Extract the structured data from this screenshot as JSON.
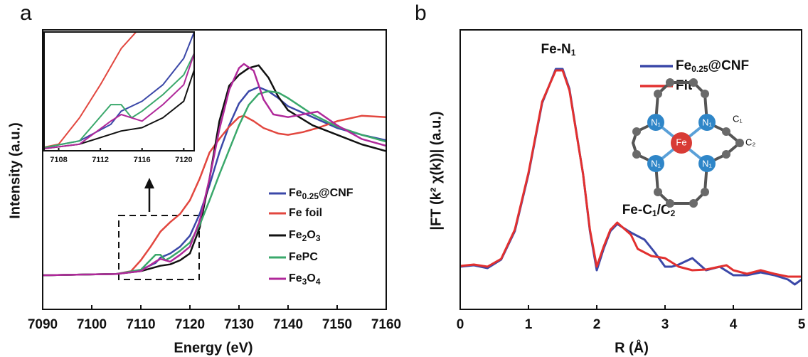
{
  "panels": [
    "a",
    "b"
  ],
  "chart_data": [
    {
      "type": "line",
      "xlabel": "Energy (eV)",
      "ylabel": "Intensity (a.u.)",
      "xlim": [
        7090,
        7160
      ],
      "ylim": [
        -0.25,
        1.8
      ],
      "xticks": [
        7090,
        7100,
        7110,
        7120,
        7130,
        7140,
        7150,
        7160
      ],
      "series": [
        {
          "name": [
            "Fe",
            "0.25",
            "@CNF"
          ],
          "color": "#3b48a8",
          "x": [
            7090,
            7105,
            7110,
            7113,
            7114,
            7116,
            7118,
            7120,
            7122,
            7124,
            7126,
            7128,
            7130,
            7132,
            7134,
            7136,
            7138,
            7140,
            7145,
            7150,
            7155,
            7160
          ],
          "values": [
            0,
            0.01,
            0.04,
            0.09,
            0.13,
            0.16,
            0.21,
            0.29,
            0.45,
            0.66,
            0.9,
            1.1,
            1.26,
            1.35,
            1.38,
            1.35,
            1.3,
            1.24,
            1.16,
            1.08,
            1.03,
            0.99
          ]
        },
        {
          "name": [
            "Fe foil"
          ],
          "color": "#e2473f",
          "x": [
            7090,
            7105,
            7108,
            7110,
            7112,
            7114,
            7116,
            7118,
            7120,
            7122,
            7124,
            7126,
            7128,
            7130,
            7131,
            7133,
            7135,
            7138,
            7140,
            7143,
            7146,
            7150,
            7155,
            7160
          ],
          "values": [
            0,
            0.01,
            0.03,
            0.11,
            0.21,
            0.32,
            0.39,
            0.45,
            0.55,
            0.71,
            0.9,
            1.0,
            1.09,
            1.16,
            1.17,
            1.13,
            1.08,
            1.04,
            1.03,
            1.05,
            1.08,
            1.13,
            1.17,
            1.16
          ]
        },
        {
          "name": [
            "Fe",
            "2",
            "O",
            "3",
            ""
          ],
          "color": "#111111",
          "x": [
            7090,
            7105,
            7110,
            7114,
            7116,
            7118,
            7120,
            7122,
            7124,
            7126,
            7128,
            7130,
            7132,
            7134,
            7136,
            7138,
            7140,
            7145,
            7150,
            7155,
            7160
          ],
          "values": [
            0,
            0.01,
            0.03,
            0.07,
            0.08,
            0.11,
            0.16,
            0.35,
            0.71,
            1.13,
            1.39,
            1.47,
            1.52,
            1.54,
            1.45,
            1.31,
            1.21,
            1.1,
            1.03,
            0.96,
            0.91
          ]
        },
        {
          "name": [
            "FePC"
          ],
          "color": "#3aa86b",
          "x": [
            7090,
            7105,
            7110,
            7113,
            7114,
            7115,
            7116,
            7118,
            7120,
            7122,
            7124,
            7126,
            7128,
            7130,
            7132,
            7134,
            7136,
            7138,
            7140,
            7145,
            7150,
            7155,
            7160
          ],
          "values": [
            0,
            0.01,
            0.04,
            0.15,
            0.15,
            0.11,
            0.13,
            0.18,
            0.24,
            0.37,
            0.55,
            0.74,
            0.92,
            1.1,
            1.25,
            1.33,
            1.35,
            1.34,
            1.3,
            1.18,
            1.09,
            1.03,
            0.98
          ]
        },
        {
          "name": [
            "Fe",
            "3",
            "O",
            "4",
            ""
          ],
          "color": "#b0289a",
          "x": [
            7090,
            7105,
            7110,
            7113,
            7114,
            7116,
            7118,
            7120,
            7122,
            7124,
            7126,
            7128,
            7130,
            7131,
            7133,
            7135,
            7137,
            7140,
            7143,
            7146,
            7150,
            7155,
            7160
          ],
          "values": [
            0,
            0.01,
            0.03,
            0.1,
            0.12,
            0.1,
            0.15,
            0.21,
            0.4,
            0.71,
            1.07,
            1.36,
            1.52,
            1.55,
            1.5,
            1.29,
            1.18,
            1.16,
            1.18,
            1.2,
            1.1,
            1.0,
            0.95
          ]
        }
      ]
    },
    {
      "type": "line",
      "xlim": [
        7106.6,
        7121
      ],
      "ylim": [
        0.01,
        0.37
      ],
      "xticks": [
        7108,
        7112,
        7116,
        7120
      ]
    },
    {
      "type": "line",
      "xlabel": "R (Å)",
      "ylabel": "|FT (k² χ(k))| (a.u.)",
      "xlim": [
        0,
        5
      ],
      "ylim": [
        0,
        3.93
      ],
      "xticks": [
        0,
        1,
        2,
        3,
        4,
        5
      ],
      "annotations": [
        [
          "Fe-N",
          "1",
          ""
        ],
        [
          "Fe-C",
          "1",
          "/C",
          "2",
          ""
        ]
      ],
      "series": [
        {
          "name": [
            "Fe",
            "0.25",
            "@CNF"
          ],
          "color": "#3b48a8",
          "x": [
            0,
            0.2,
            0.4,
            0.6,
            0.8,
            1.0,
            1.2,
            1.4,
            1.5,
            1.6,
            1.8,
            1.9,
            2.0,
            2.1,
            2.2,
            2.3,
            2.5,
            2.7,
            2.85,
            3.0,
            3.1,
            3.2,
            3.4,
            3.6,
            3.8,
            4.0,
            4.2,
            4.4,
            4.6,
            4.8,
            4.9,
            5.0
          ],
          "values": [
            0.6,
            0.62,
            0.58,
            0.7,
            1.1,
            1.9,
            2.9,
            3.38,
            3.38,
            3.1,
            1.9,
            1.1,
            0.55,
            0.85,
            1.1,
            1.2,
            1.08,
            0.98,
            0.8,
            0.6,
            0.6,
            0.63,
            0.72,
            0.55,
            0.6,
            0.48,
            0.48,
            0.52,
            0.48,
            0.42,
            0.35,
            0.42
          ]
        },
        {
          "name": [
            "Fit"
          ],
          "color": "#e2302f",
          "x": [
            0,
            0.2,
            0.4,
            0.6,
            0.8,
            1.0,
            1.2,
            1.4,
            1.5,
            1.6,
            1.8,
            1.9,
            2.0,
            2.1,
            2.2,
            2.3,
            2.5,
            2.6,
            2.8,
            3.0,
            3.2,
            3.4,
            3.6,
            3.8,
            3.9,
            4.0,
            4.2,
            4.4,
            4.6,
            4.8,
            5.0
          ],
          "values": [
            0.61,
            0.63,
            0.6,
            0.71,
            1.12,
            1.92,
            2.92,
            3.36,
            3.36,
            3.08,
            1.9,
            1.12,
            0.6,
            0.88,
            1.12,
            1.22,
            1.05,
            0.85,
            0.75,
            0.72,
            0.6,
            0.55,
            0.56,
            0.6,
            0.62,
            0.55,
            0.5,
            0.55,
            0.5,
            0.46,
            0.46
          ]
        }
      ]
    }
  ],
  "molecule": {
    "center": "Fe",
    "n": "N₁",
    "c1": "C₁",
    "c2": "C₂"
  }
}
